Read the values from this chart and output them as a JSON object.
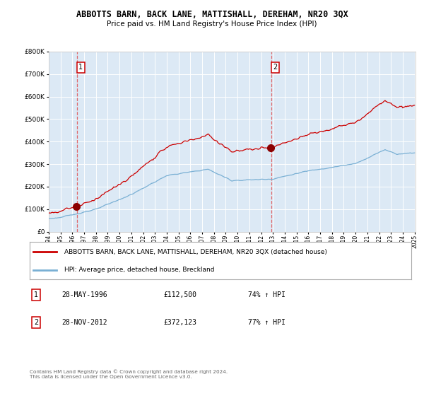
{
  "title": "ABBOTTS BARN, BACK LANE, MATTISHALL, DEREHAM, NR20 3QX",
  "subtitle": "Price paid vs. HM Land Registry's House Price Index (HPI)",
  "sale1_label": "1",
  "sale2_label": "2",
  "red_line_label": "ABBOTTS BARN, BACK LANE, MATTISHALL, DEREHAM, NR20 3QX (detached house)",
  "blue_line_label": "HPI: Average price, detached house, Breckland",
  "footer": "Contains HM Land Registry data © Crown copyright and database right 2024.\nThis data is licensed under the Open Government Licence v3.0.",
  "ylim": [
    0,
    800000
  ],
  "plot_bg": "#dce9f5",
  "red_color": "#cc0000",
  "blue_color": "#7ab0d4",
  "grid_color": "#ffffff",
  "vline_color": "#e05050",
  "sale1_year": 1996.37,
  "sale1_price": 112500,
  "sale2_year": 2012.87,
  "sale2_price": 372123,
  "row1_num": "1",
  "row1_date": "28-MAY-1996",
  "row1_price": "£112,500",
  "row1_hpi": "74% ↑ HPI",
  "row2_num": "2",
  "row2_date": "28-NOV-2012",
  "row2_price": "£372,123",
  "row2_hpi": "77% ↑ HPI"
}
